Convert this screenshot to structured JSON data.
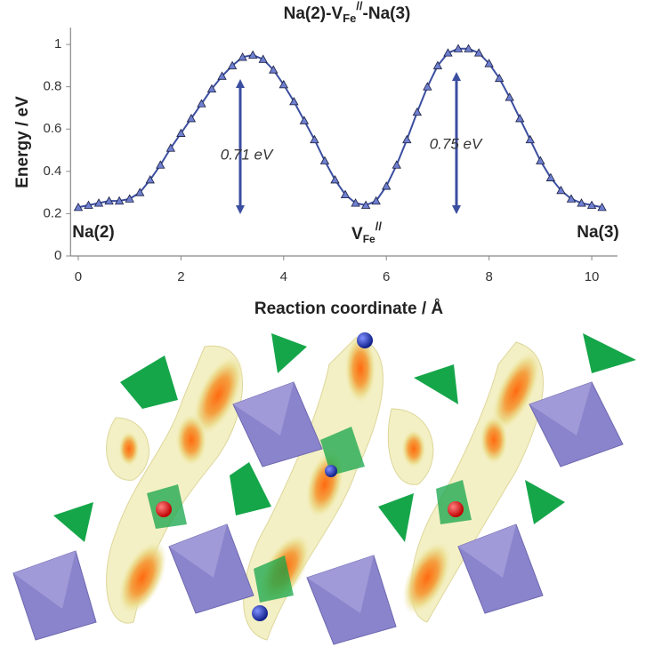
{
  "chart_data": {
    "type": "line",
    "title": {
      "text": "Na(2)-V",
      "sub": "Fe",
      "sup": "//",
      "tail": "-Na(3)"
    },
    "x_label": "Reaction coordinate / Å",
    "y_label": "Energy / eV",
    "x": [
      0,
      0.2,
      0.4,
      0.6,
      0.8,
      1.0,
      1.2,
      1.4,
      1.6,
      1.8,
      2.0,
      2.2,
      2.4,
      2.6,
      2.8,
      3.0,
      3.2,
      3.4,
      3.6,
      3.8,
      4.0,
      4.2,
      4.4,
      4.6,
      4.8,
      5.0,
      5.2,
      5.4,
      5.6,
      5.8,
      6.0,
      6.2,
      6.4,
      6.6,
      6.8,
      7.0,
      7.2,
      7.4,
      7.6,
      7.8,
      8.0,
      8.2,
      8.4,
      8.6,
      8.8,
      9.0,
      9.2,
      9.4,
      9.6,
      9.8,
      10.0,
      10.2
    ],
    "values": [
      0.23,
      0.24,
      0.25,
      0.26,
      0.26,
      0.27,
      0.3,
      0.36,
      0.43,
      0.51,
      0.58,
      0.65,
      0.72,
      0.79,
      0.85,
      0.9,
      0.94,
      0.95,
      0.93,
      0.88,
      0.81,
      0.73,
      0.64,
      0.55,
      0.45,
      0.36,
      0.29,
      0.25,
      0.24,
      0.26,
      0.33,
      0.43,
      0.55,
      0.68,
      0.8,
      0.9,
      0.96,
      0.98,
      0.98,
      0.96,
      0.91,
      0.84,
      0.75,
      0.65,
      0.55,
      0.45,
      0.37,
      0.31,
      0.27,
      0.25,
      0.24,
      0.23
    ],
    "color": "#3b4ea0",
    "marker_color": "#6f7fd0",
    "xlim": [
      -0.15,
      10.5
    ],
    "ylim": [
      0,
      1.08
    ],
    "xticks": [
      0,
      2,
      4,
      6,
      8,
      10
    ],
    "yticks": [
      0,
      0.2,
      0.4,
      0.6,
      0.8,
      1
    ],
    "annotations": [
      "0.71 eV",
      "0.75 eV"
    ],
    "site_labels": [
      {
        "text": "Na(2)"
      },
      {
        "text": "V",
        "sub": "Fe",
        "sup": "//"
      },
      {
        "text": "Na(3)"
      }
    ]
  }
}
